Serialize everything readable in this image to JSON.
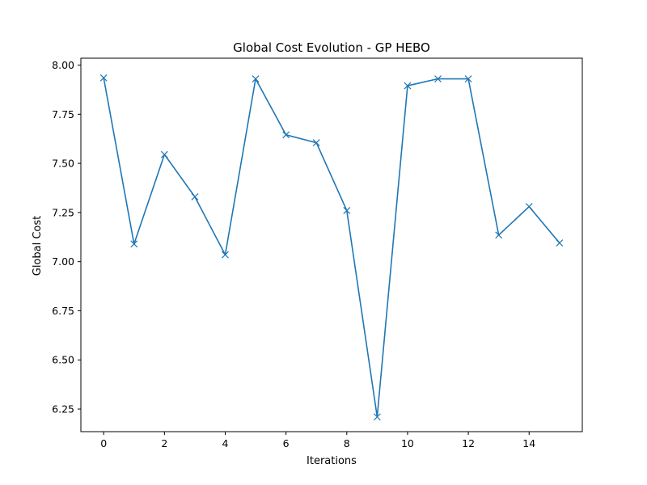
{
  "chart_data": {
    "type": "line",
    "title": "Global Cost Evolution - GP HEBO",
    "xlabel": "Iterations",
    "ylabel": "Global Cost",
    "xlim": [
      -0.75,
      15.75
    ],
    "ylim": [
      6.135,
      8.035
    ],
    "xticks": [
      0,
      2,
      4,
      6,
      8,
      10,
      12,
      14
    ],
    "yticks": [
      6.25,
      6.5,
      6.75,
      7.0,
      7.25,
      7.5,
      7.75,
      8.0
    ],
    "ytick_labels": [
      "6.25",
      "6.50",
      "6.75",
      "7.00",
      "7.25",
      "7.50",
      "7.75",
      "8.00"
    ],
    "grid": false,
    "marker": "x",
    "colors": {
      "line": "#1f77b4",
      "axes": "#000000",
      "background": "#ffffff"
    },
    "x": [
      0,
      1,
      2,
      3,
      4,
      5,
      6,
      7,
      8,
      9,
      10,
      11,
      12,
      13,
      14,
      15
    ],
    "series": [
      {
        "values": [
          7.935,
          7.09,
          7.545,
          7.33,
          7.035,
          7.93,
          7.645,
          7.605,
          7.26,
          6.21,
          7.895,
          7.93,
          7.93,
          7.135,
          7.28,
          7.095
        ]
      }
    ]
  }
}
